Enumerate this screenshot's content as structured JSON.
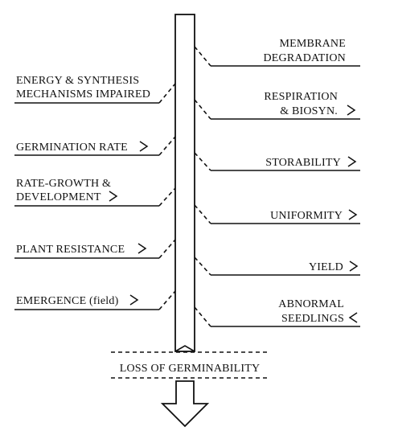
{
  "left_labels": [
    {
      "lines": [
        "ENERGY & SYNTHESIS",
        "MECHANISMS IMPAIRED"
      ],
      "symbol": ""
    },
    {
      "lines": [
        "GERMINATION RATE"
      ],
      "symbol": ">"
    },
    {
      "lines": [
        "RATE-GROWTH &",
        "DEVELOPMENT"
      ],
      "symbol": ">"
    },
    {
      "lines": [
        "PLANT RESISTANCE"
      ],
      "symbol": ">"
    },
    {
      "lines": [
        "EMERGENCE (field)"
      ],
      "symbol": ">"
    }
  ],
  "right_labels": [
    {
      "lines": [
        "MEMBRANE",
        "DEGRADATION"
      ],
      "symbol": ""
    },
    {
      "lines": [
        "RESPIRATION",
        "& BIOSYN."
      ],
      "symbol": ">"
    },
    {
      "lines": [
        "STORABILITY"
      ],
      "symbol": ">"
    },
    {
      "lines": [
        "UNIFORMITY"
      ],
      "symbol": ">"
    },
    {
      "lines": [
        "YIELD"
      ],
      "symbol": ">"
    },
    {
      "lines": [
        "ABNORMAL",
        "SEEDLINGS"
      ],
      "symbol": "<"
    }
  ],
  "bottom_label": "LOSS OF GERMINABILITY",
  "icons": {
    "down_arrow": "down-arrow-icon"
  }
}
